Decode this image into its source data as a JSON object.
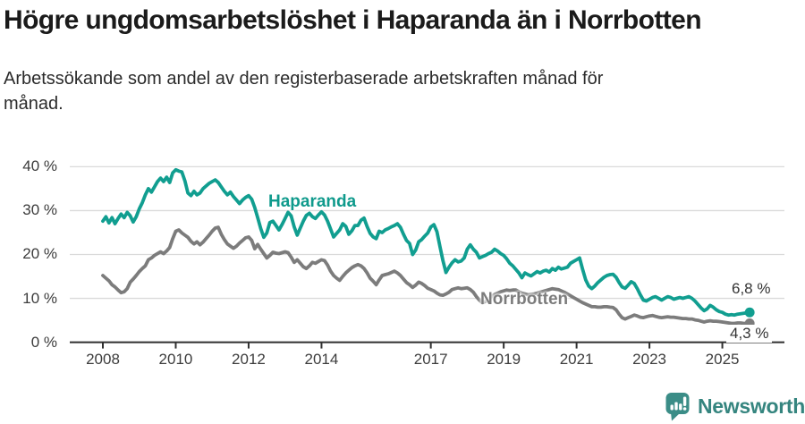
{
  "header": {
    "title": "Högre ungdomsarbetslöshet i Haparanda än i Norrbotten",
    "subtitle_line1": "Arbetssökande som andel av den registerbaserade arbetskraften månad för",
    "subtitle_line2": "månad."
  },
  "branding": {
    "logo_text": "Newsworthy",
    "logo_color": "#3b8d87"
  },
  "colors": {
    "haparanda": "#119e90",
    "haparanda_label": "#0f9a8c",
    "norrbotten": "#7c7c7c",
    "axis": "#303030",
    "grid": "#dadada"
  },
  "chart_data": {
    "type": "line",
    "title": "Högre ungdomsarbetslöshet i Haparanda än i Norrbotten",
    "subtitle": "Arbetssökande som andel av den registerbaserade arbetskraften månad för månad.",
    "unit": "%",
    "x_axis": {
      "ticks": [
        2008,
        2010,
        2012,
        2014,
        2017,
        2019,
        2021,
        2023,
        2025
      ],
      "tick_labels": [
        "2008",
        "2010",
        "2012",
        "2014",
        "2017",
        "2019",
        "2021",
        "2023",
        "2025"
      ],
      "range_years": [
        2007.1,
        2026.7
      ]
    },
    "y_axis": {
      "ticks": [
        0,
        10,
        20,
        30,
        40
      ],
      "tick_labels": [
        "0 %",
        "10 %",
        "20 %",
        "30 %",
        "40 %"
      ],
      "range": [
        0,
        40
      ],
      "grid": true
    },
    "legend_position": "inline-labels",
    "end_labels": {
      "haparanda": "6,8 %",
      "norrbotten": "4,3 %"
    },
    "series": [
      {
        "name": "Haparanda",
        "color": "#119e90",
        "start_year": 2008,
        "start_month": 1,
        "step_months": 1,
        "values": [
          27.6,
          28.6,
          27.2,
          28.4,
          27.0,
          28.2,
          29.2,
          28.4,
          29.6,
          28.8,
          27.4,
          28.6,
          30.4,
          31.8,
          33.6,
          35.0,
          34.2,
          35.4,
          36.6,
          37.4,
          36.6,
          37.6,
          36.4,
          38.6,
          39.3,
          39.0,
          38.8,
          36.8,
          34.0,
          33.4,
          34.4,
          33.6,
          34.0,
          35.0,
          35.6,
          36.2,
          36.6,
          37.0,
          36.4,
          35.4,
          34.4,
          33.6,
          34.2,
          33.2,
          32.4,
          31.6,
          32.4,
          33.0,
          33.4,
          32.6,
          30.7,
          28.4,
          25.9,
          23.9,
          24.9,
          27.3,
          27.6,
          26.6,
          25.6,
          26.8,
          28.2,
          29.6,
          28.8,
          26.3,
          24.4,
          26.0,
          27.6,
          28.9,
          29.4,
          28.6,
          28.2,
          29.0,
          29.7,
          29.0,
          27.6,
          25.8,
          24.0,
          24.8,
          25.6,
          27.0,
          26.4,
          24.6,
          25.4,
          26.6,
          26.6,
          27.8,
          28.3,
          26.4,
          24.8,
          24.0,
          23.6,
          25.3,
          25.0,
          25.6,
          25.9,
          26.3,
          26.6,
          27.0,
          26.2,
          24.6,
          23.2,
          22.5,
          20.0,
          21.0,
          22.9,
          23.4,
          24.2,
          24.9,
          26.3,
          26.8,
          25.2,
          21.9,
          18.6,
          15.9,
          17.1,
          18.1,
          18.8,
          18.3,
          18.5,
          19.2,
          21.2,
          22.2,
          21.2,
          20.5,
          19.2,
          19.5,
          19.8,
          20.2,
          20.5,
          21.2,
          20.8,
          20.2,
          19.8,
          19.0,
          18.0,
          17.4,
          16.6,
          15.8,
          14.7,
          15.8,
          15.4,
          15.1,
          15.6,
          16.1,
          15.8,
          16.2,
          16.4,
          16.0,
          16.8,
          16.4,
          17.1,
          16.7,
          16.9,
          17.1,
          18.0,
          18.4,
          18.8,
          19.2,
          16.6,
          14.2,
          12.8,
          12.2,
          12.8,
          13.6,
          14.2,
          14.8,
          15.2,
          15.4,
          15.5,
          14.8,
          13.6,
          12.6,
          12.3,
          13.0,
          13.8,
          13.4,
          12.2,
          10.8,
          9.6,
          9.4,
          9.8,
          10.2,
          10.4,
          10.0,
          9.6,
          10.0,
          10.4,
          10.2,
          9.8,
          10.0,
          10.2,
          10.0,
          10.2,
          10.4,
          10.0,
          9.4,
          8.6,
          7.8,
          7.2,
          7.6,
          8.4,
          8.0,
          7.4,
          7.0,
          6.8,
          6.4,
          6.2,
          6.3,
          6.2,
          6.4,
          6.5,
          6.6,
          6.7,
          6.8
        ],
        "last_value_label": "6,8 %"
      },
      {
        "name": "Norrbotten",
        "color": "#7c7c7c",
        "start_year": 2008,
        "start_month": 1,
        "step_months": 1,
        "values": [
          15.2,
          14.6,
          14.0,
          13.1,
          12.6,
          11.9,
          11.3,
          11.5,
          12.2,
          13.7,
          14.4,
          15.2,
          16.1,
          16.8,
          17.4,
          18.8,
          19.2,
          19.8,
          20.2,
          20.6,
          20.2,
          20.8,
          21.6,
          23.6,
          25.3,
          25.6,
          24.9,
          24.4,
          23.9,
          23.0,
          22.4,
          22.9,
          22.2,
          22.8,
          23.6,
          24.4,
          25.3,
          26.0,
          26.2,
          24.6,
          23.4,
          22.4,
          21.9,
          21.4,
          21.9,
          22.6,
          23.2,
          23.8,
          24.0,
          23.2,
          21.3,
          22.3,
          21.2,
          20.2,
          19.2,
          19.8,
          20.5,
          20.3,
          20.2,
          20.4,
          20.6,
          20.4,
          19.4,
          18.2,
          18.8,
          18.0,
          17.2,
          16.8,
          17.4,
          18.2,
          18.0,
          18.4,
          18.8,
          18.6,
          17.6,
          16.2,
          15.2,
          14.6,
          14.1,
          15.0,
          15.8,
          16.4,
          17.0,
          17.4,
          17.7,
          17.4,
          16.8,
          15.8,
          14.6,
          13.9,
          13.1,
          14.2,
          15.2,
          15.4,
          15.6,
          15.9,
          16.2,
          15.8,
          15.2,
          14.4,
          13.6,
          13.1,
          12.5,
          13.0,
          13.7,
          13.4,
          12.9,
          12.3,
          12.0,
          11.7,
          11.2,
          10.8,
          10.7,
          11.0,
          11.4,
          12.0,
          12.2,
          12.4,
          12.2,
          12.3,
          12.4,
          12.0,
          11.4,
          10.4,
          9.6,
          9.0,
          9.3,
          9.9,
          10.4,
          10.9,
          11.2,
          11.5,
          11.7,
          11.9,
          11.8,
          11.9,
          11.9,
          11.5,
          11.2,
          11.0,
          10.8,
          10.9,
          11.0,
          11.2,
          11.4,
          11.6,
          11.8,
          12.0,
          12.2,
          12.1,
          12.0,
          11.7,
          11.4,
          11.0,
          10.6,
          10.2,
          9.8,
          9.4,
          9.0,
          8.7,
          8.4,
          8.1,
          8.1,
          8.0,
          8.0,
          8.1,
          8.1,
          8.0,
          7.9,
          7.4,
          6.4,
          5.6,
          5.3,
          5.6,
          5.9,
          6.2,
          6.0,
          5.7,
          5.6,
          5.8,
          6.0,
          6.1,
          5.9,
          5.7,
          5.6,
          5.7,
          5.8,
          5.7,
          5.7,
          5.6,
          5.5,
          5.4,
          5.4,
          5.3,
          5.3,
          5.1,
          5.0,
          4.8,
          4.6,
          4.8,
          4.9,
          4.8,
          4.8,
          4.7,
          4.6,
          4.5,
          4.4,
          4.3,
          4.3,
          4.4,
          4.4,
          4.3,
          4.3,
          4.3
        ],
        "last_value_label": "4,3 %"
      }
    ]
  }
}
